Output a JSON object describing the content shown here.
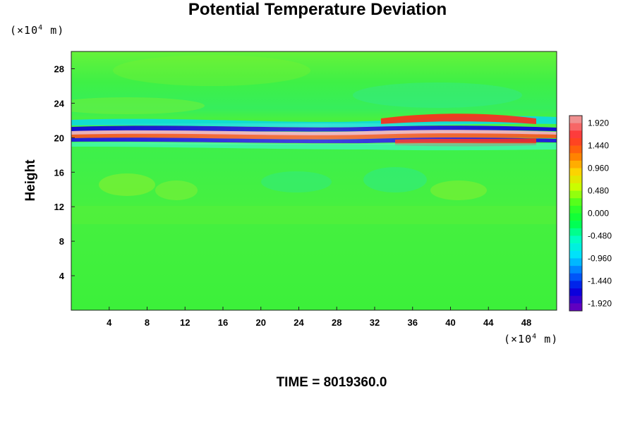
{
  "chart_data": {
    "type": "heatmap",
    "title": "Potential Temperature Deviation",
    "ylabel": "Height",
    "xunit": "m",
    "yunit": "m",
    "unit_scale": "×10",
    "unit_exponent": "4",
    "footer": "TIME = 8019360.0",
    "x_ticks": [
      "4",
      "8",
      "12",
      "16",
      "20",
      "24",
      "28",
      "32",
      "36",
      "40",
      "44",
      "48"
    ],
    "y_ticks": [
      "4",
      "8",
      "12",
      "16",
      "20",
      "24",
      "28"
    ],
    "xlim": [
      0,
      51.2
    ],
    "ylim": [
      0,
      30
    ],
    "colorbar": {
      "labels": [
        "1.920",
        "1.440",
        "0.960",
        "0.480",
        "0.000",
        "-0.480",
        "-0.960",
        "-1.440",
        "-1.920"
      ],
      "range": [
        -2.08,
        2.08
      ],
      "colors": [
        "#f09090",
        "#ff3030",
        "#ff7000",
        "#ffd000",
        "#c8ff00",
        "#40ff20",
        "#00ff40",
        "#00ffc0",
        "#00e0ff",
        "#0070ff",
        "#0000e0",
        "#6000c0"
      ]
    },
    "field_description": "Mostly near-zero deviation (green) across the domain; a strong alternating positive/negative band near height 20-22 with extremes about ±1.9; weaker perturbations around 10-18."
  }
}
